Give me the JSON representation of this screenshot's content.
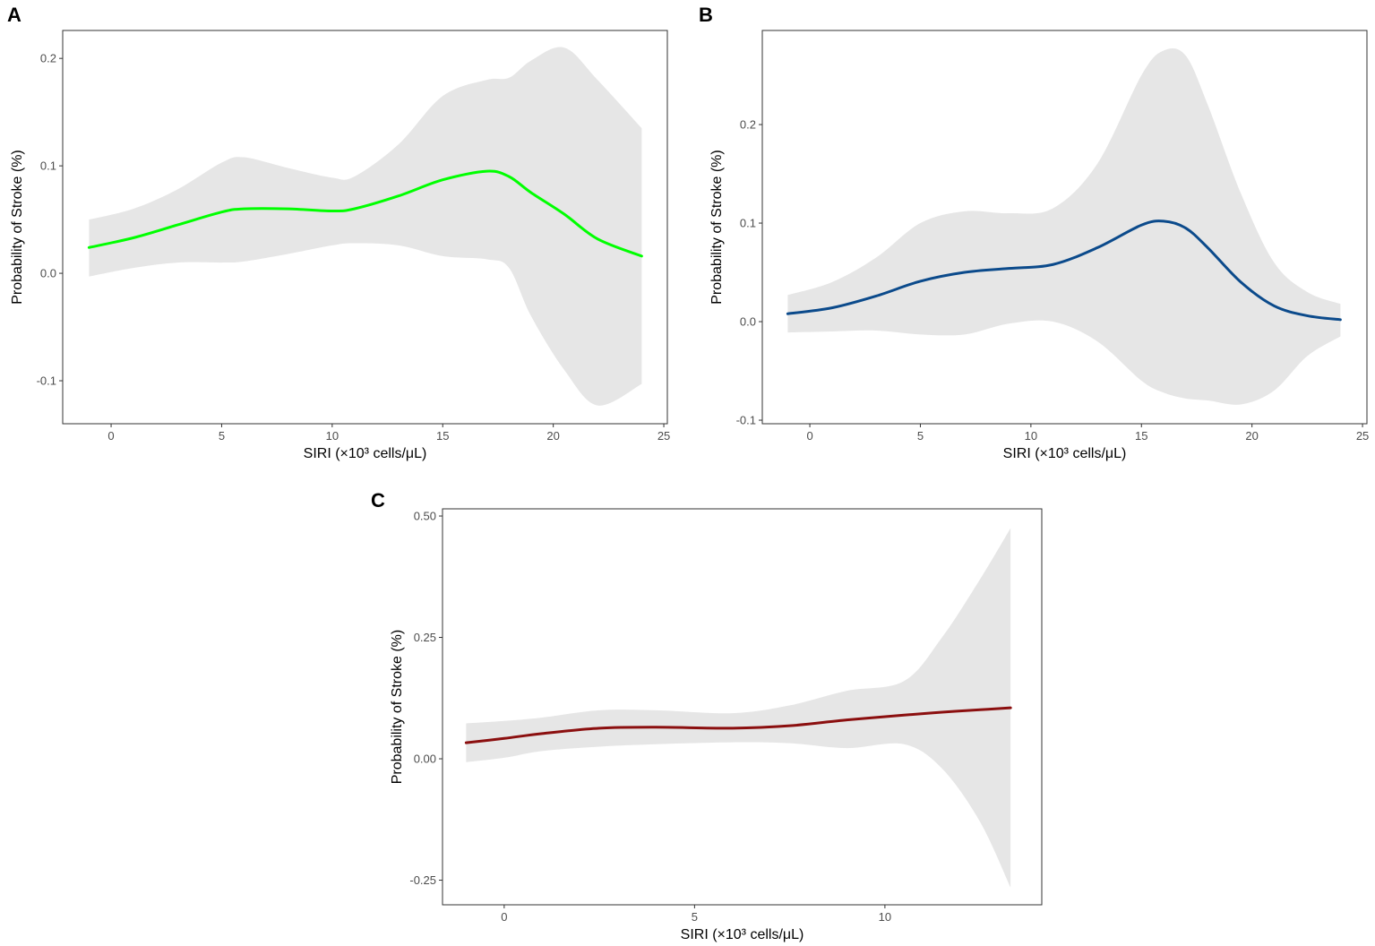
{
  "chart_data": [
    {
      "type": "line",
      "panel_label": "A",
      "xlabel": "SIRI (×10³ cells/μL)",
      "ylabel": "Probability of Stroke (%)",
      "xlim": [
        -2.19,
        25.16
      ],
      "ylim": [
        -0.14,
        0.226
      ],
      "xticks": [
        0,
        5,
        10,
        15,
        20,
        25
      ],
      "xtick_labels": [
        "0",
        "5",
        "10",
        "15",
        "20",
        "25"
      ],
      "yticks": [
        -0.1,
        0.0,
        0.1,
        0.2
      ],
      "ytick_labels": [
        "-0.1",
        "0.0",
        "0.1",
        "0.2"
      ],
      "grid": false,
      "line_color": "#00ff00",
      "band_color": "#e6e6e6",
      "x": [
        -1,
        1,
        3,
        5,
        6,
        8,
        10,
        11,
        13,
        15,
        17,
        18,
        19,
        20.5,
        22,
        24
      ],
      "fit": [
        0.024,
        0.033,
        0.045,
        0.057,
        0.06,
        0.06,
        0.058,
        0.06,
        0.072,
        0.087,
        0.095,
        0.09,
        0.075,
        0.055,
        0.032,
        0.016
      ],
      "lower": [
        -0.003,
        0.005,
        0.01,
        0.01,
        0.011,
        0.018,
        0.026,
        0.028,
        0.026,
        0.016,
        0.013,
        0.005,
        -0.04,
        -0.09,
        -0.123,
        -0.103
      ],
      "upper": [
        0.05,
        0.06,
        0.078,
        0.103,
        0.108,
        0.098,
        0.089,
        0.09,
        0.12,
        0.165,
        0.18,
        0.182,
        0.198,
        0.21,
        0.18,
        0.135
      ]
    },
    {
      "type": "line",
      "panel_label": "B",
      "xlabel": "SIRI (×10³ cells/μL)",
      "ylabel": "Probability of Stroke (%)",
      "xlim": [
        -2.15,
        25.2
      ],
      "ylim": [
        -0.1036,
        0.2955
      ],
      "xticks": [
        0,
        5,
        10,
        15,
        20,
        25
      ],
      "xtick_labels": [
        "0",
        "5",
        "10",
        "15",
        "20",
        "25"
      ],
      "yticks": [
        -0.1,
        0.0,
        0.1,
        0.2
      ],
      "ytick_labels": [
        "-0.1",
        "0.0",
        "0.1",
        "0.2"
      ],
      "grid": false,
      "line_color": "#0b4a8b",
      "band_color": "#e6e6e6",
      "x": [
        -1,
        1,
        3,
        5,
        7,
        9,
        11,
        13,
        15,
        16,
        17,
        18,
        19.5,
        21,
        22.5,
        24
      ],
      "fit": [
        0.008,
        0.014,
        0.026,
        0.041,
        0.05,
        0.054,
        0.058,
        0.075,
        0.098,
        0.102,
        0.095,
        0.075,
        0.04,
        0.016,
        0.006,
        0.002
      ],
      "lower": [
        -0.011,
        -0.01,
        -0.009,
        -0.013,
        -0.013,
        -0.002,
        0.0,
        -0.02,
        -0.06,
        -0.072,
        -0.078,
        -0.08,
        -0.084,
        -0.07,
        -0.035,
        -0.015
      ],
      "upper": [
        0.027,
        0.04,
        0.065,
        0.1,
        0.112,
        0.11,
        0.115,
        0.16,
        0.25,
        0.275,
        0.27,
        0.22,
        0.13,
        0.06,
        0.03,
        0.018
      ]
    },
    {
      "type": "line",
      "panel_label": "C",
      "xlabel": "SIRI (×10³ cells/μL)",
      "ylabel": "Probability of Stroke (%)",
      "xlim": [
        -1.62,
        14.12
      ],
      "ylim": [
        -0.3007,
        0.5148
      ],
      "xticks": [
        0,
        5,
        10
      ],
      "xtick_labels": [
        "0",
        "5",
        "10"
      ],
      "yticks": [
        -0.25,
        0.0,
        0.25,
        0.5
      ],
      "ytick_labels": [
        "-0.25",
        "0.00",
        "0.25",
        "0.50"
      ],
      "grid": false,
      "line_color": "#8b0f0f",
      "band_color": "#e6e6e6",
      "x": [
        -1,
        0,
        1,
        2.5,
        4,
        6,
        7.5,
        9,
        10.5,
        11.5,
        12.5,
        13.3
      ],
      "fit": [
        0.033,
        0.042,
        0.052,
        0.063,
        0.065,
        0.063,
        0.068,
        0.08,
        0.09,
        0.096,
        0.101,
        0.105
      ],
      "lower": [
        -0.007,
        0.002,
        0.016,
        0.025,
        0.03,
        0.034,
        0.032,
        0.022,
        0.03,
        -0.02,
        -0.13,
        -0.265
      ],
      "upper": [
        0.073,
        0.078,
        0.085,
        0.1,
        0.1,
        0.094,
        0.11,
        0.14,
        0.16,
        0.25,
        0.37,
        0.475
      ]
    }
  ]
}
